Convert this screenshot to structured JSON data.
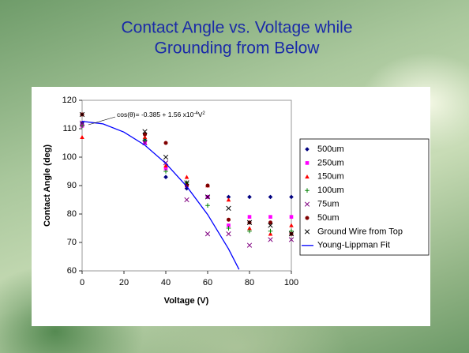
{
  "chart_data": {
    "type": "scatter",
    "title": [
      "Contact Angle vs. Voltage while",
      "Grounding from Below"
    ],
    "x_label": "Voltage (V)",
    "y_label": "Contact Angle (deg)",
    "annotation": [
      "cos(θ)= -0.385 + 1.56 x10",
      "-4",
      "V",
      "2"
    ],
    "xlim": [
      0,
      100
    ],
    "xticks": [
      0,
      20,
      40,
      60,
      80,
      100
    ],
    "ylim": [
      60,
      120
    ],
    "yticks": [
      60,
      70,
      80,
      90,
      100,
      110,
      120
    ],
    "x": [
      0,
      30,
      40,
      50,
      60,
      70,
      80,
      90,
      100
    ],
    "series": [
      {
        "name": "500um",
        "color": "#000080",
        "marker": "diamond",
        "values": [
          112,
          106,
          93,
          89,
          86,
          86,
          86,
          86,
          86
        ]
      },
      {
        "name": "250um",
        "color": "#ff00ff",
        "marker": "square",
        "values": [
          111,
          105,
          96,
          90,
          86,
          76,
          79,
          79,
          79
        ]
      },
      {
        "name": "150um",
        "color": "#ff0000",
        "marker": "triangle",
        "values": [
          107,
          107,
          97,
          93,
          90,
          85,
          75,
          73,
          76
        ]
      },
      {
        "name": "100um",
        "color": "#008000",
        "marker": "plus",
        "values": [
          111,
          106,
          95,
          91,
          83,
          75,
          74,
          74,
          74
        ]
      },
      {
        "name": "75um",
        "color": "#800080",
        "marker": "x",
        "values": [
          112,
          105,
          98,
          85,
          73,
          73,
          69,
          71,
          71
        ]
      },
      {
        "name": "50um",
        "color": "#800000",
        "marker": "circle",
        "values": [
          115,
          108,
          105,
          90,
          90,
          78,
          77,
          77,
          73
        ]
      },
      {
        "name": "Ground Wire from Top",
        "color": "#000000",
        "marker": "x",
        "values": [
          115,
          109,
          100,
          91,
          86,
          82,
          77,
          76,
          73
        ]
      },
      {
        "name": "Young-Lippman Fit",
        "color": "#0000ff",
        "marker": "line",
        "x": [
          0,
          10,
          20,
          30,
          40,
          50,
          60,
          70,
          75
        ],
        "values": [
          112.6,
          111.7,
          108.8,
          104.2,
          97.8,
          89.7,
          79.8,
          67.7,
          60.5
        ]
      }
    ]
  }
}
